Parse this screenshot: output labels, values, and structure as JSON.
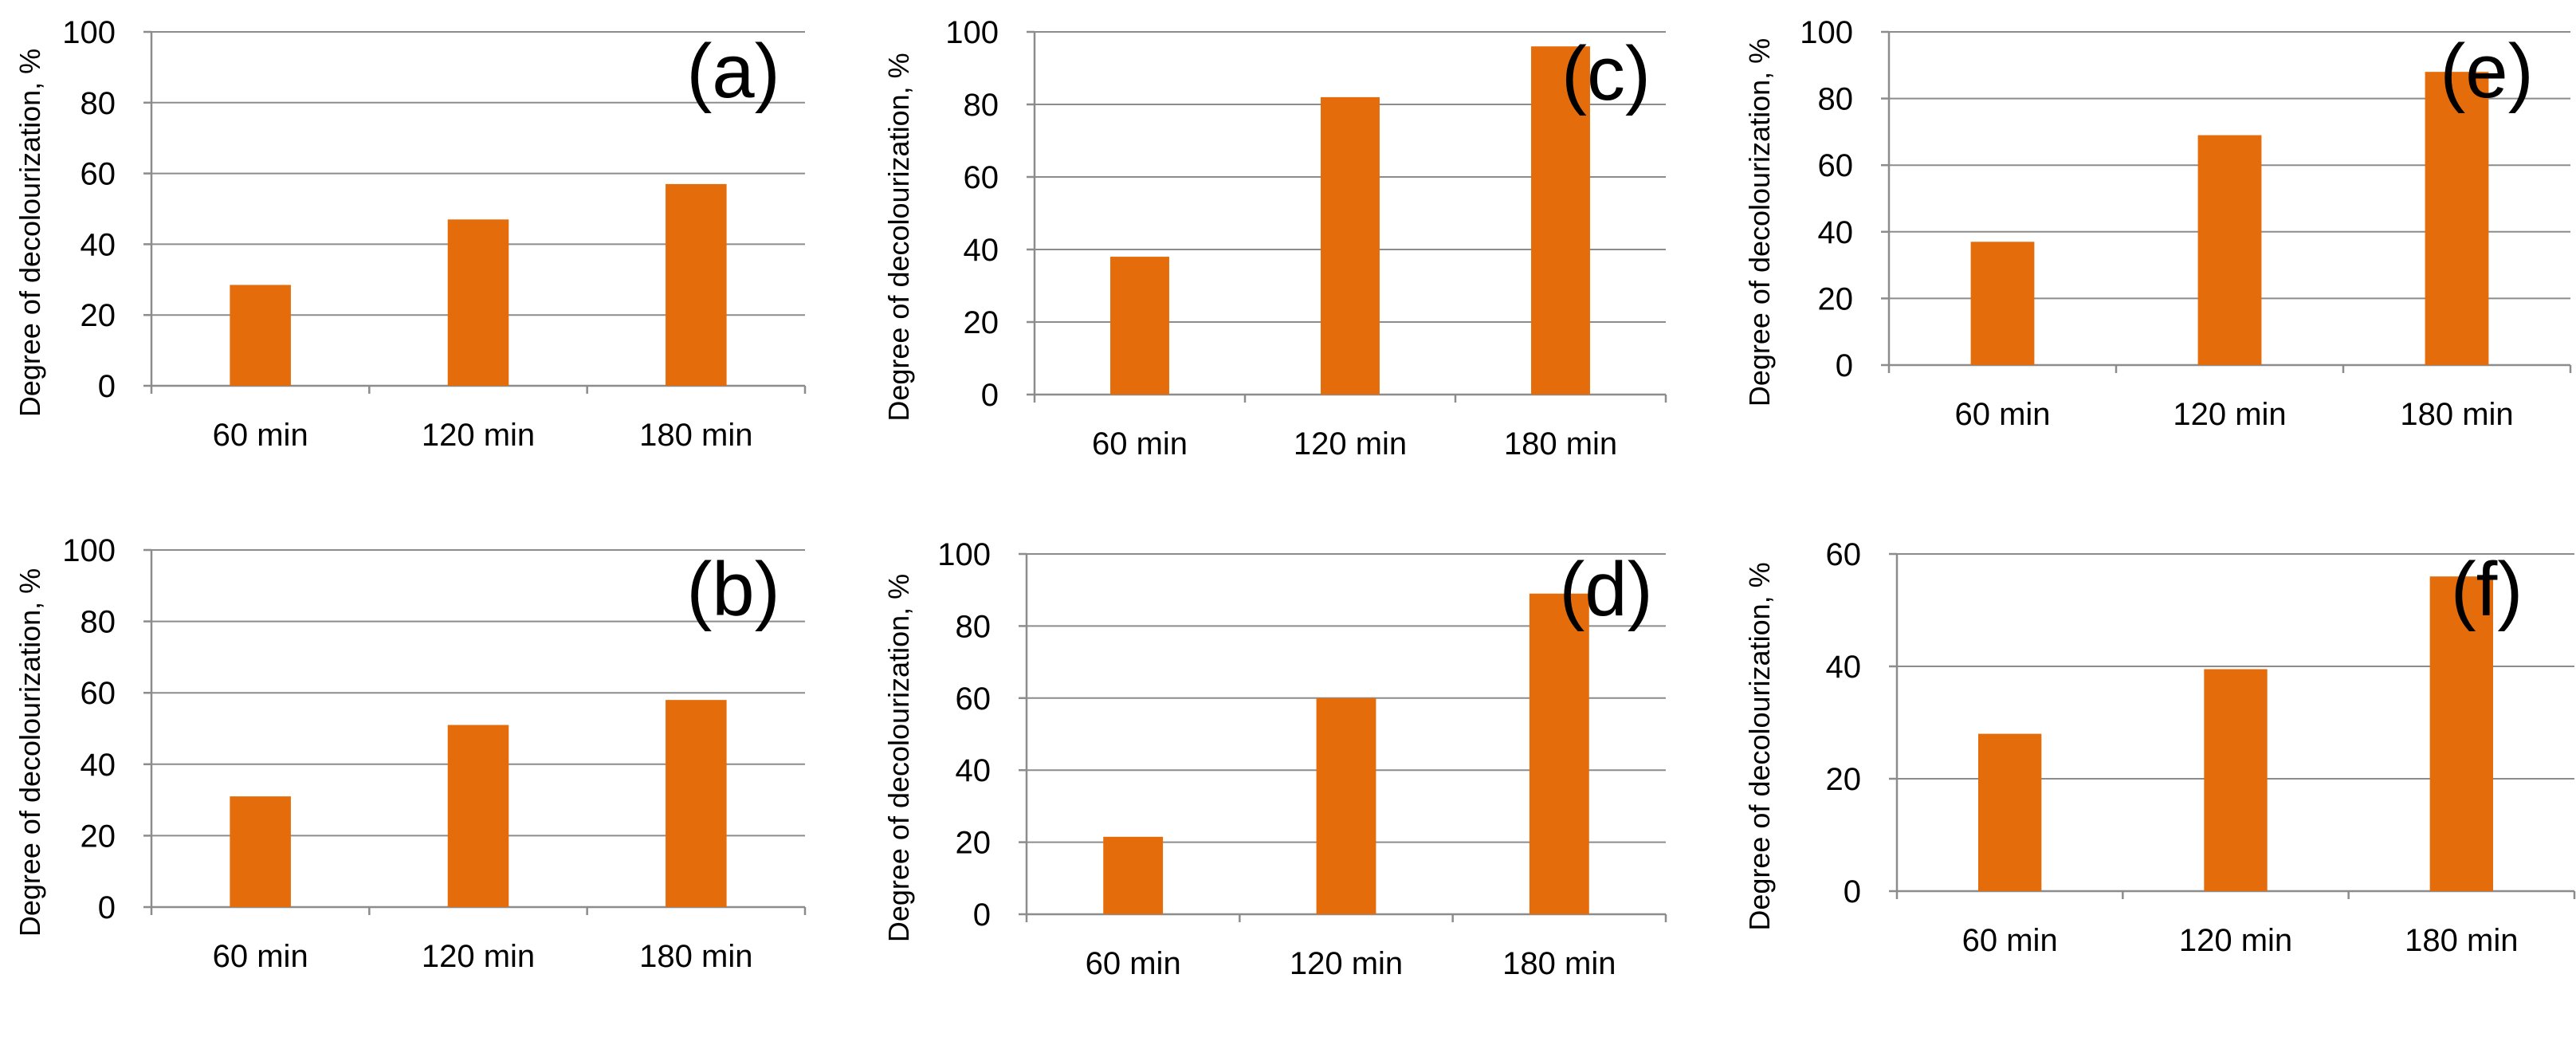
{
  "colors": {
    "bar": "#E46C0A",
    "grid": "#8c8c8c",
    "text": "#000000"
  },
  "chart_data": [
    {
      "id": "a",
      "type": "bar",
      "title": "(a)",
      "categories": [
        "60 min",
        "120 min",
        "180 min"
      ],
      "values": [
        28.5,
        47,
        57
      ],
      "ylabel": "Degree of decolourization, %",
      "ylim": [
        0,
        100
      ],
      "yticks": [
        0,
        20,
        40,
        60,
        80,
        100
      ]
    },
    {
      "id": "c",
      "type": "bar",
      "title": "(c)",
      "categories": [
        "60 min",
        "120 min",
        "180 min"
      ],
      "values": [
        38,
        82,
        96
      ],
      "ylabel": "Degree of decolourization, %",
      "ylim": [
        0,
        100
      ],
      "yticks": [
        0,
        20,
        40,
        60,
        80,
        100
      ]
    },
    {
      "id": "e",
      "type": "bar",
      "title": "(e)",
      "categories": [
        "60 min",
        "120 min",
        "180 min"
      ],
      "values": [
        37,
        69,
        88
      ],
      "ylabel": "Degree of decolourization, %",
      "ylim": [
        0,
        100
      ],
      "yticks": [
        0,
        20,
        40,
        60,
        80,
        100
      ]
    },
    {
      "id": "b",
      "type": "bar",
      "title": "(b)",
      "categories": [
        "60 min",
        "120 min",
        "180 min"
      ],
      "values": [
        31,
        51,
        58
      ],
      "ylabel": "Degree of decolourization, %",
      "ylim": [
        0,
        100
      ],
      "yticks": [
        0,
        20,
        40,
        60,
        80,
        100
      ]
    },
    {
      "id": "d",
      "type": "bar",
      "title": "(d)",
      "categories": [
        "60 min",
        "120 min",
        "180 min"
      ],
      "values": [
        21.5,
        60,
        89
      ],
      "ylabel": "Degree of decolourization, %",
      "ylim": [
        0,
        100
      ],
      "yticks": [
        0,
        20,
        40,
        60,
        80,
        100
      ]
    },
    {
      "id": "f",
      "type": "bar",
      "title": "(f)",
      "categories": [
        "60 min",
        "120 min",
        "180 min"
      ],
      "values": [
        28,
        39.5,
        56
      ],
      "ylabel": "Degree of decolourization, %",
      "ylim": [
        0,
        60
      ],
      "yticks": [
        0,
        20,
        40,
        60
      ]
    }
  ]
}
